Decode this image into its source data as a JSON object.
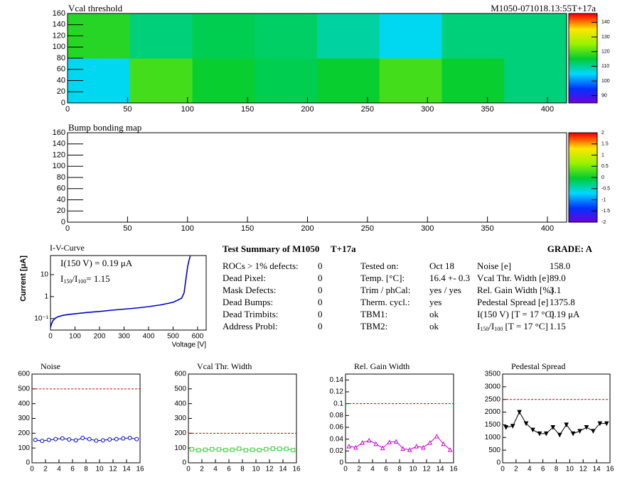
{
  "chart_data": [
    {
      "type": "heatmap",
      "title": "Vcal threshold",
      "subtitle": "M1050-071018.13:55T+17a",
      "xlim": [
        0,
        416
      ],
      "xticks": [
        0,
        50,
        100,
        150,
        200,
        250,
        300,
        350,
        400
      ],
      "ylim": [
        0,
        160
      ],
      "yticks": [
        0,
        20,
        40,
        60,
        80,
        100,
        120,
        140,
        160
      ],
      "values": [
        [
          106,
          120,
          116,
          114,
          116,
          120,
          116,
          112
        ],
        [
          118,
          112,
          114,
          113,
          110,
          106,
          112,
          112
        ]
      ],
      "zlim": [
        85,
        146
      ],
      "zticks": [
        90,
        100,
        110,
        120,
        130,
        140
      ]
    },
    {
      "type": "heatmap",
      "title": "Bump bonding map",
      "xlim": [
        0,
        416
      ],
      "xticks": [
        0,
        50,
        100,
        150,
        200,
        250,
        300,
        350,
        400
      ],
      "ylim": [
        0,
        160
      ],
      "yticks": [
        0,
        20,
        40,
        60,
        80,
        100,
        120,
        140,
        160
      ],
      "values": [],
      "zlim": [
        -2,
        2
      ],
      "zticks": [
        -2,
        -1.5,
        -1,
        -0.5,
        0,
        0.5,
        1,
        1.5,
        2
      ]
    },
    {
      "type": "line",
      "title": "I-V-Curve",
      "x_label": "Voltage [V]",
      "y_label": "Current [μA]",
      "log_y": true,
      "color": "#0000cc",
      "x": [
        0,
        5,
        10,
        20,
        30,
        50,
        75,
        100,
        150,
        200,
        250,
        300,
        350,
        400,
        450,
        500,
        520,
        535,
        545,
        550,
        555,
        560,
        565,
        570
      ],
      "values": [
        0.04,
        0.06,
        0.08,
        0.105,
        0.12,
        0.14,
        0.155,
        0.165,
        0.19,
        0.21,
        0.24,
        0.27,
        0.3,
        0.35,
        0.42,
        0.55,
        0.7,
        0.85,
        1.5,
        4,
        10,
        25,
        45,
        70
      ],
      "xlim": [
        0,
        635
      ],
      "xticks": [
        0,
        100,
        200,
        300,
        400,
        500,
        600
      ],
      "ylim": [
        0.03,
        74
      ],
      "yticks": [
        {
          "value": 0.1,
          "label": "10⁻¹"
        },
        1,
        10
      ],
      "annotations": [
        [
          "I(150 V) = 0.19 μA"
        ],
        [
          "I",
          "150",
          "/I",
          "100",
          "=  1.15"
        ]
      ]
    },
    {
      "type": "line",
      "title": "Noise",
      "color": "#0000cc",
      "marker": "circle",
      "threshold": 500,
      "x": [
        0.5,
        1.5,
        2.5,
        3.5,
        4.5,
        5.5,
        6.5,
        7.5,
        8.5,
        9.5,
        10.5,
        11.5,
        12.5,
        13.5,
        14.5,
        15.5
      ],
      "values": [
        155,
        148,
        155,
        160,
        165,
        158,
        152,
        168,
        160,
        150,
        152,
        158,
        160,
        165,
        168,
        160
      ],
      "xlim": [
        0,
        16
      ],
      "xticks": [
        0,
        2,
        4,
        6,
        8,
        10,
        12,
        14,
        16
      ],
      "ylim": [
        0,
        600
      ],
      "yticks": [
        0,
        100,
        200,
        300,
        400,
        500,
        600
      ]
    },
    {
      "type": "line",
      "title": "Vcal Thr. Width",
      "color": "#33cc33",
      "marker": "square",
      "threshold": 200,
      "x": [
        0.5,
        1.5,
        2.5,
        3.5,
        4.5,
        5.5,
        6.5,
        7.5,
        8.5,
        9.5,
        10.5,
        11.5,
        12.5,
        13.5,
        14.5,
        15.5
      ],
      "values": [
        92,
        85,
        88,
        92,
        90,
        86,
        88,
        95,
        85,
        88,
        86,
        92,
        96,
        95,
        94,
        86
      ],
      "xlim": [
        0,
        16
      ],
      "xticks": [
        0,
        2,
        4,
        6,
        8,
        10,
        12,
        14,
        16
      ],
      "ylim": [
        0,
        600
      ],
      "yticks": [
        0,
        100,
        200,
        300,
        400,
        500,
        600
      ]
    },
    {
      "type": "line",
      "title": "Rel. Gain Width",
      "color": "#cc00cc",
      "marker": "triangle",
      "threshold": 0.1,
      "x": [
        0.5,
        1.5,
        2.5,
        3.5,
        4.5,
        5.5,
        6.5,
        7.5,
        8.5,
        9.5,
        10.5,
        11.5,
        12.5,
        13.5,
        14.5,
        15.5
      ],
      "values": [
        0.028,
        0.026,
        0.034,
        0.038,
        0.032,
        0.025,
        0.035,
        0.036,
        0.024,
        0.022,
        0.028,
        0.026,
        0.034,
        0.045,
        0.032,
        0.022
      ],
      "xlim": [
        0,
        16
      ],
      "xticks": [
        0,
        2,
        4,
        6,
        8,
        10,
        12,
        14,
        16
      ],
      "ylim": [
        0,
        0.15
      ],
      "yticks": [
        0,
        0.02,
        0.04,
        0.06,
        0.08,
        0.1,
        0.12,
        0.14
      ]
    },
    {
      "type": "line",
      "title": "Pedestal Spread",
      "color": "#000000",
      "marker": "triangle-down",
      "threshold": 2500,
      "x": [
        0.5,
        1.5,
        2.5,
        3.5,
        4.5,
        5.5,
        6.5,
        7.5,
        8.5,
        9.5,
        10.5,
        11.5,
        12.5,
        13.5,
        14.5,
        15.5
      ],
      "values": [
        1400,
        1450,
        2000,
        1550,
        1300,
        1150,
        1150,
        1400,
        1100,
        1500,
        1150,
        1250,
        1400,
        1250,
        1550,
        1550
      ],
      "xlim": [
        0,
        16
      ],
      "xticks": [
        0,
        2,
        4,
        6,
        8,
        10,
        12,
        14,
        16
      ],
      "ylim": [
        0,
        3500
      ],
      "yticks": [
        0,
        500,
        1000,
        1500,
        2000,
        2500,
        3000,
        3500
      ]
    }
  ],
  "summary": {
    "title": "Test Summary of M1050",
    "tag": "T+17a",
    "grade": "GRADE:  A",
    "columns": [
      [
        [
          "ROCs > 1% defects:",
          "0"
        ],
        [
          "Dead Pixel:",
          "0"
        ],
        [
          "Mask Defects:",
          "0"
        ],
        [
          "Dead Bumps:",
          "0"
        ],
        [
          "Dead Trimbits:",
          "0"
        ],
        [
          "Address Probl:",
          "0"
        ]
      ],
      [
        [
          "Tested on:",
          "Oct 18"
        ],
        [
          "Temp. [°C]:",
          "16.4 +- 0.3"
        ],
        [
          "Trim / phCal:",
          "yes / yes"
        ],
        [
          "Therm. cycl.:",
          "yes"
        ],
        [
          "TBM1:",
          "ok"
        ],
        [
          "TBM2:",
          "ok"
        ]
      ],
      [
        [
          "Noise [e]",
          "158.0"
        ],
        [
          "Vcal Thr. Width [e]",
          "89.0"
        ],
        [
          "Rel. Gain Width [%]",
          "3.1"
        ],
        [
          "Pedestal Spread [e]",
          "1375.8"
        ],
        [
          "I(150 V) [T = 17 °C]",
          "0.19 μA"
        ],
        [
          [
            "I",
            "150",
            "/I",
            "100",
            "  [T = 17 °C]"
          ],
          "1.15"
        ]
      ]
    ]
  }
}
